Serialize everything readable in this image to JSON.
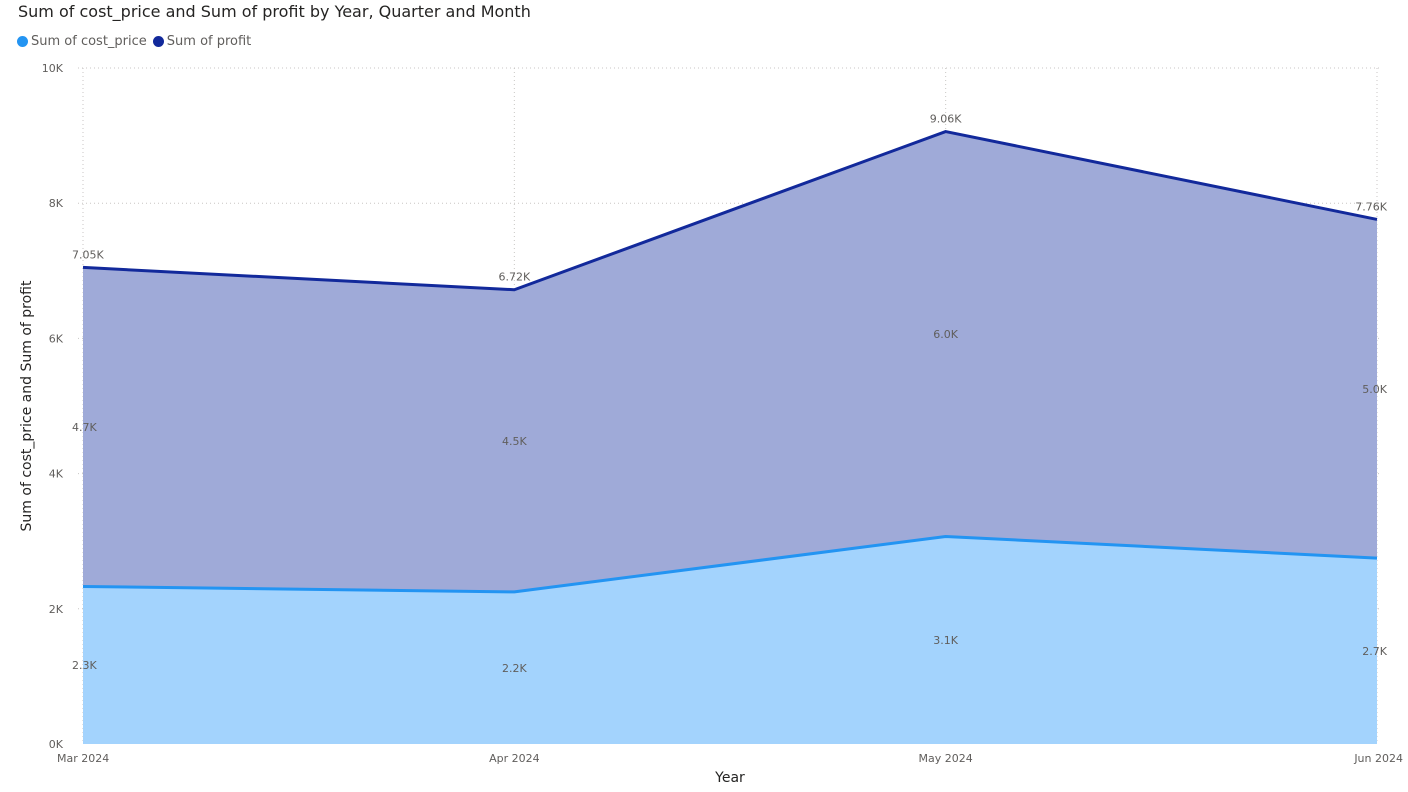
{
  "chart_data": {
    "type": "area",
    "title": "Sum of cost_price and Sum of profit by Year, Quarter and Month",
    "xlabel": "Year",
    "ylabel": "Sum of cost_price and Sum of profit",
    "categories": [
      "Mar 2024",
      "Apr 2024",
      "May 2024",
      "Jun 2024"
    ],
    "ylim": [
      0,
      10000
    ],
    "yticks": [
      0,
      2000,
      4000,
      6000,
      8000,
      10000
    ],
    "ytick_labels": [
      "0K",
      "2K",
      "4K",
      "6K",
      "8K",
      "10K"
    ],
    "stacked": true,
    "grid": true,
    "legend_position": "top-left",
    "series": [
      {
        "name": "Sum of cost_price",
        "values": [
          2330,
          2250,
          3070,
          2750
        ],
        "data_labels": [
          "2.3K",
          "2.2K",
          "3.1K",
          "2.7K"
        ],
        "line_color": "#2394f2",
        "fill_color": "#a3d3fd"
      },
      {
        "name": "Sum of profit",
        "values": [
          4720,
          4470,
          5990,
          5010
        ],
        "data_labels": [
          "4.7K",
          "4.5K",
          "6.0K",
          "5.0K"
        ],
        "total_labels": [
          "7.05K",
          "6.72K",
          "9.06K",
          "7.76K"
        ],
        "line_color": "#12299b",
        "fill_color": "#9faad8"
      }
    ]
  }
}
